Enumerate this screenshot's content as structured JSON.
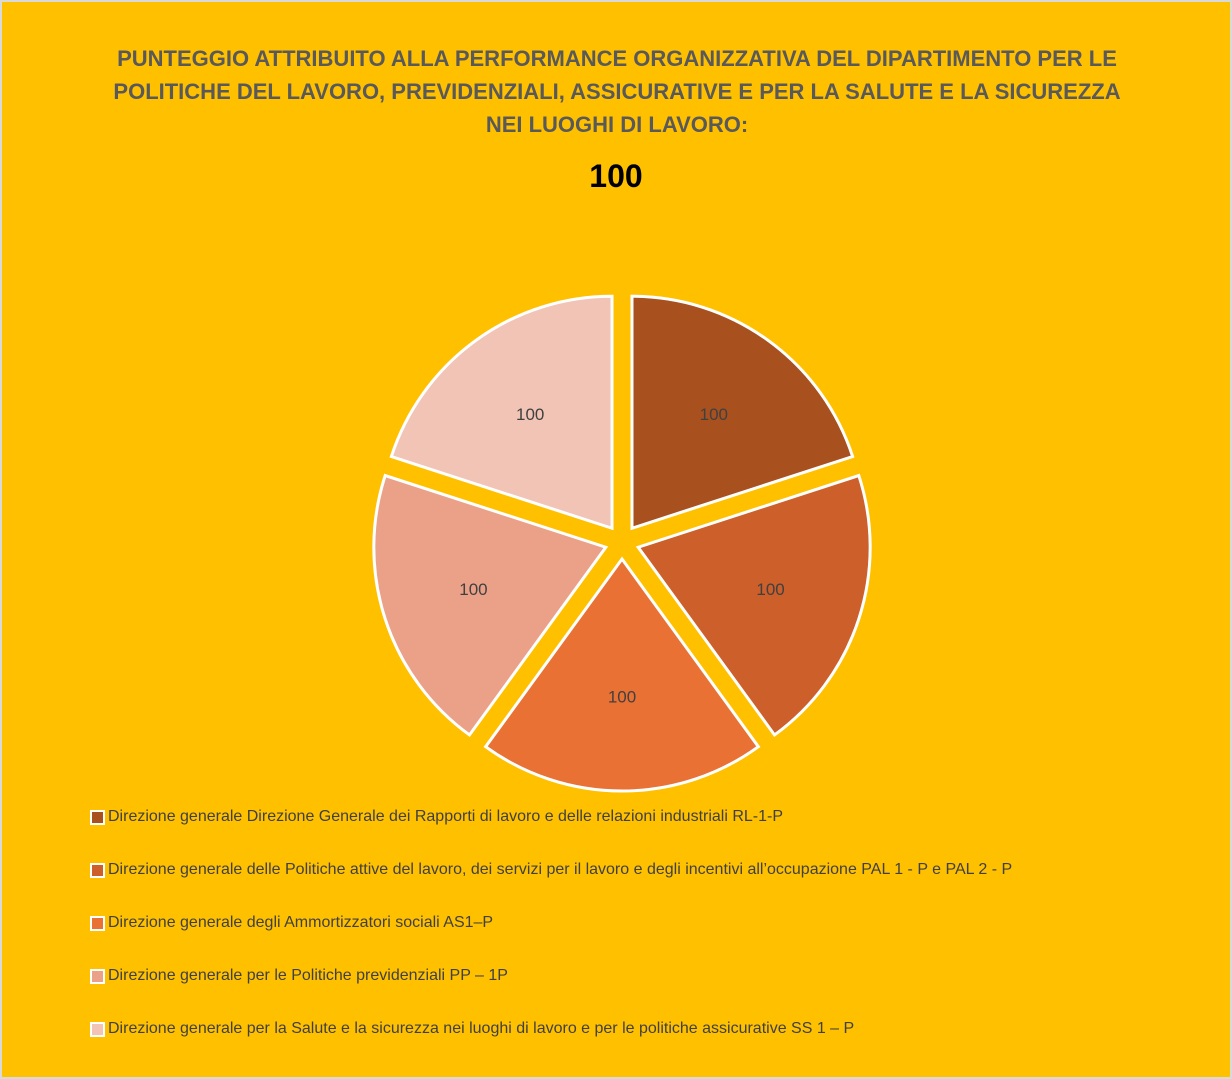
{
  "chart_data": {
    "type": "pie",
    "title": "PUNTEGGIO ATTRIBUITO ALLA PERFORMANCE ORGANIZZATIVA DEL DIPARTIMENTO PER LE POLITICHE DEL LAVORO, PREVIDENZIALI, ASSICURATIVE E PER LA SALUTE E LA SICUREZZA NEI LUOGHI DI LAVORO:",
    "subtitle": "100",
    "categories": [
      "Direzione generale Direzione Generale dei Rapporti di lavoro e delle relazioni industriali RL-1-P",
      "Direzione generale delle Politiche attive del lavoro, dei servizi per il lavoro e degli incentivi all’occupazione PAL 1 - P e PAL 2 - P",
      "Direzione generale degli Ammortizzatori sociali AS1–P",
      "Direzione generale per le Politiche previdenziali PP – 1P",
      "Direzione generale per la Salute e la sicurezza nei luoghi di lavoro e per le politiche assicurative SS 1 – P"
    ],
    "values": [
      100,
      100,
      100,
      100,
      100
    ],
    "colors": [
      "#a9501f",
      "#cc5f2a",
      "#e87133",
      "#eba187",
      "#f1c4b5"
    ],
    "legend": "bottom"
  }
}
